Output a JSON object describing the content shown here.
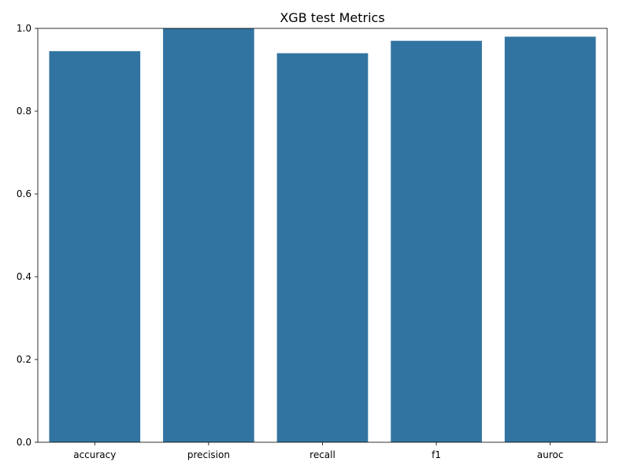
{
  "chart_data": {
    "type": "bar",
    "title": "XGB test Metrics",
    "xlabel": "",
    "ylabel": "",
    "categories": [
      "accuracy",
      "precision",
      "recall",
      "f1",
      "auroc"
    ],
    "values": [
      0.945,
      1.0,
      0.94,
      0.97,
      0.98
    ],
    "ylim": [
      0,
      1.0
    ],
    "yticks": [
      0.0,
      0.2,
      0.4,
      0.6,
      0.8,
      1.0
    ],
    "ytick_labels": [
      "0.0",
      "0.2",
      "0.4",
      "0.6",
      "0.8",
      "1.0"
    ],
    "grid": false,
    "bar_color": "#3274a1",
    "axis_color": "#000000"
  }
}
